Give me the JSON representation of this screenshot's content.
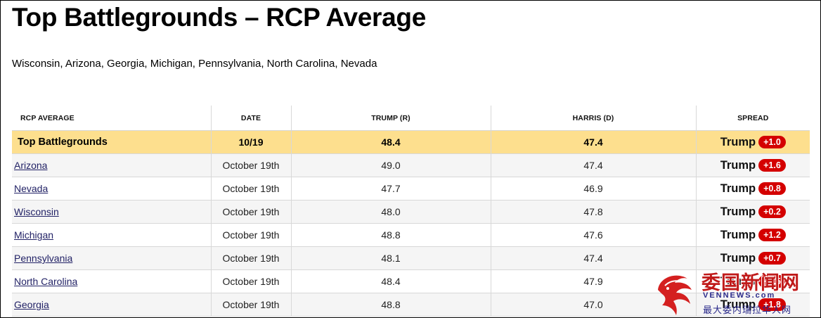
{
  "header": {
    "title": "Top Battlegrounds – RCP Average",
    "subtitle": "Wisconsin, Arizona, Georgia, Michigan, Pennsylvania, North Carolina, Nevada"
  },
  "table": {
    "columns": [
      "RCP AVERAGE",
      "DATE",
      "TRUMP (R)",
      "HARRIS (D)",
      "SPREAD"
    ],
    "average": {
      "label": "Top Battlegrounds",
      "date": "10/19",
      "trump": "48.4",
      "harris": "47.4",
      "spread_candidate": "Trump",
      "spread_value": "+1.0"
    },
    "rows": [
      {
        "state": "Arizona",
        "date": "October 19th",
        "trump": "49.0",
        "harris": "47.4",
        "spread_candidate": "Trump",
        "spread_value": "+1.6"
      },
      {
        "state": "Nevada",
        "date": "October 19th",
        "trump": "47.7",
        "harris": "46.9",
        "spread_candidate": "Trump",
        "spread_value": "+0.8"
      },
      {
        "state": "Wisconsin",
        "date": "October 19th",
        "trump": "48.0",
        "harris": "47.8",
        "spread_candidate": "Trump",
        "spread_value": "+0.2"
      },
      {
        "state": "Michigan",
        "date": "October 19th",
        "trump": "48.8",
        "harris": "47.6",
        "spread_candidate": "Trump",
        "spread_value": "+1.2"
      },
      {
        "state": "Pennsylvania",
        "date": "October 19th",
        "trump": "48.1",
        "harris": "47.4",
        "spread_candidate": "Trump",
        "spread_value": "+0.7"
      },
      {
        "state": "North Carolina",
        "date": "October 19th",
        "trump": "48.4",
        "harris": "47.9",
        "spread_candidate": "Trump",
        "spread_value": "+0.5"
      },
      {
        "state": "Georgia",
        "date": "October 19th",
        "trump": "48.8",
        "harris": "47.0",
        "spread_candidate": "Trump",
        "spread_value": "+1.8"
      }
    ]
  },
  "watermark": {
    "cn_title": "委国新闻网",
    "en_title": "VENNEWS.com",
    "cn_sub": "最大委内瑞拉华人网"
  },
  "colors": {
    "average_row": "#fddf8e",
    "spread_badge": "#d40000",
    "link": "#222266"
  }
}
